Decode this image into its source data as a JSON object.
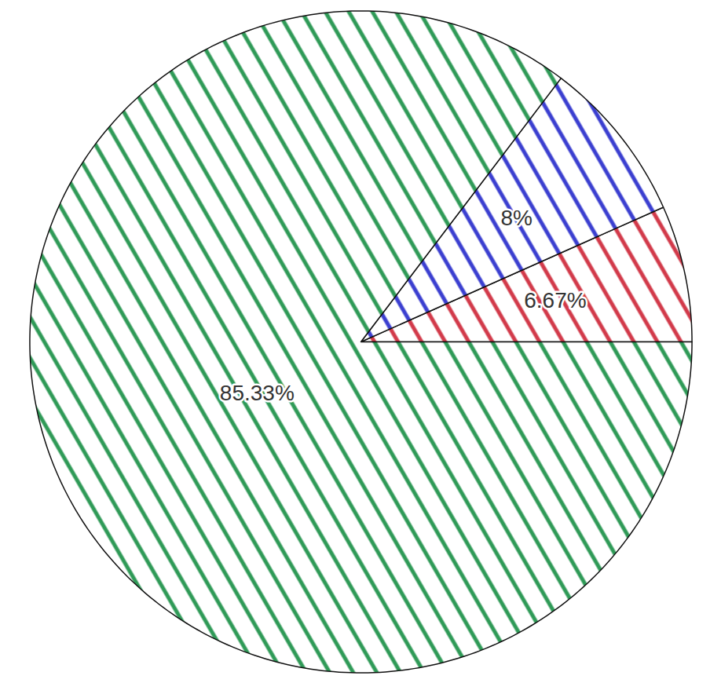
{
  "chart_data": {
    "type": "pie",
    "values": [
      6.67,
      8,
      85.33
    ],
    "value_labels": [
      "6.67%",
      "8%",
      "85.33%"
    ],
    "colors": [
      "#d23a4a",
      "#3b3fd0",
      "#2f9a57"
    ],
    "data_labels": true
  }
}
